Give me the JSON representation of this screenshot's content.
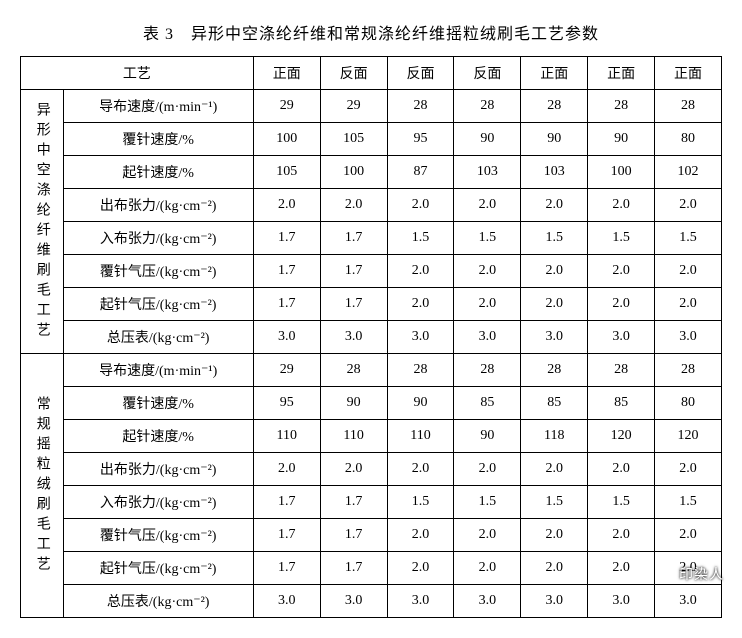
{
  "title": "表 3　异形中空涤纶纤维和常规涤纶纤维摇粒绒刷毛工艺参数",
  "header": {
    "process_label": "工艺",
    "columns": [
      "正面",
      "反面",
      "反面",
      "反面",
      "正面",
      "正面",
      "正面"
    ]
  },
  "sections": [
    {
      "label": "异形中空涤纶纤维刷毛工艺",
      "rows": [
        {
          "param": "导布速度/(m·min⁻¹)",
          "vals": [
            "29",
            "29",
            "28",
            "28",
            "28",
            "28",
            "28"
          ]
        },
        {
          "param": "覆针速度/%",
          "vals": [
            "100",
            "105",
            "95",
            "90",
            "90",
            "90",
            "80"
          ]
        },
        {
          "param": "起针速度/%",
          "vals": [
            "105",
            "100",
            "87",
            "103",
            "103",
            "100",
            "102"
          ]
        },
        {
          "param": "出布张力/(kg·cm⁻²)",
          "vals": [
            "2.0",
            "2.0",
            "2.0",
            "2.0",
            "2.0",
            "2.0",
            "2.0"
          ]
        },
        {
          "param": "入布张力/(kg·cm⁻²)",
          "vals": [
            "1.7",
            "1.7",
            "1.5",
            "1.5",
            "1.5",
            "1.5",
            "1.5"
          ]
        },
        {
          "param": "覆针气压/(kg·cm⁻²)",
          "vals": [
            "1.7",
            "1.7",
            "2.0",
            "2.0",
            "2.0",
            "2.0",
            "2.0"
          ]
        },
        {
          "param": "起针气压/(kg·cm⁻²)",
          "vals": [
            "1.7",
            "1.7",
            "2.0",
            "2.0",
            "2.0",
            "2.0",
            "2.0"
          ]
        },
        {
          "param": "总压表/(kg·cm⁻²)",
          "vals": [
            "3.0",
            "3.0",
            "3.0",
            "3.0",
            "3.0",
            "3.0",
            "3.0"
          ]
        }
      ]
    },
    {
      "label": "常规摇粒绒刷毛工艺",
      "rows": [
        {
          "param": "导布速度/(m·min⁻¹)",
          "vals": [
            "29",
            "28",
            "28",
            "28",
            "28",
            "28",
            "28"
          ]
        },
        {
          "param": "覆针速度/%",
          "vals": [
            "95",
            "90",
            "90",
            "85",
            "85",
            "85",
            "80"
          ]
        },
        {
          "param": "起针速度/%",
          "vals": [
            "110",
            "110",
            "110",
            "90",
            "118",
            "120",
            "120"
          ]
        },
        {
          "param": "出布张力/(kg·cm⁻²)",
          "vals": [
            "2.0",
            "2.0",
            "2.0",
            "2.0",
            "2.0",
            "2.0",
            "2.0"
          ]
        },
        {
          "param": "入布张力/(kg·cm⁻²)",
          "vals": [
            "1.7",
            "1.7",
            "1.5",
            "1.5",
            "1.5",
            "1.5",
            "1.5"
          ]
        },
        {
          "param": "覆针气压/(kg·cm⁻²)",
          "vals": [
            "1.7",
            "1.7",
            "2.0",
            "2.0",
            "2.0",
            "2.0",
            "2.0"
          ]
        },
        {
          "param": "起针气压/(kg·cm⁻²)",
          "vals": [
            "1.7",
            "1.7",
            "2.0",
            "2.0",
            "2.0",
            "2.0",
            "2.0"
          ]
        },
        {
          "param": "总压表/(kg·cm⁻²)",
          "vals": [
            "3.0",
            "3.0",
            "3.0",
            "3.0",
            "3.0",
            "3.0",
            "3.0"
          ]
        }
      ]
    }
  ],
  "watermark": "印染人",
  "style": {
    "background_color": "#ffffff",
    "border_color": "#000000",
    "text_color": "#000000",
    "title_fontsize": 16,
    "cell_fontsize": 14
  }
}
